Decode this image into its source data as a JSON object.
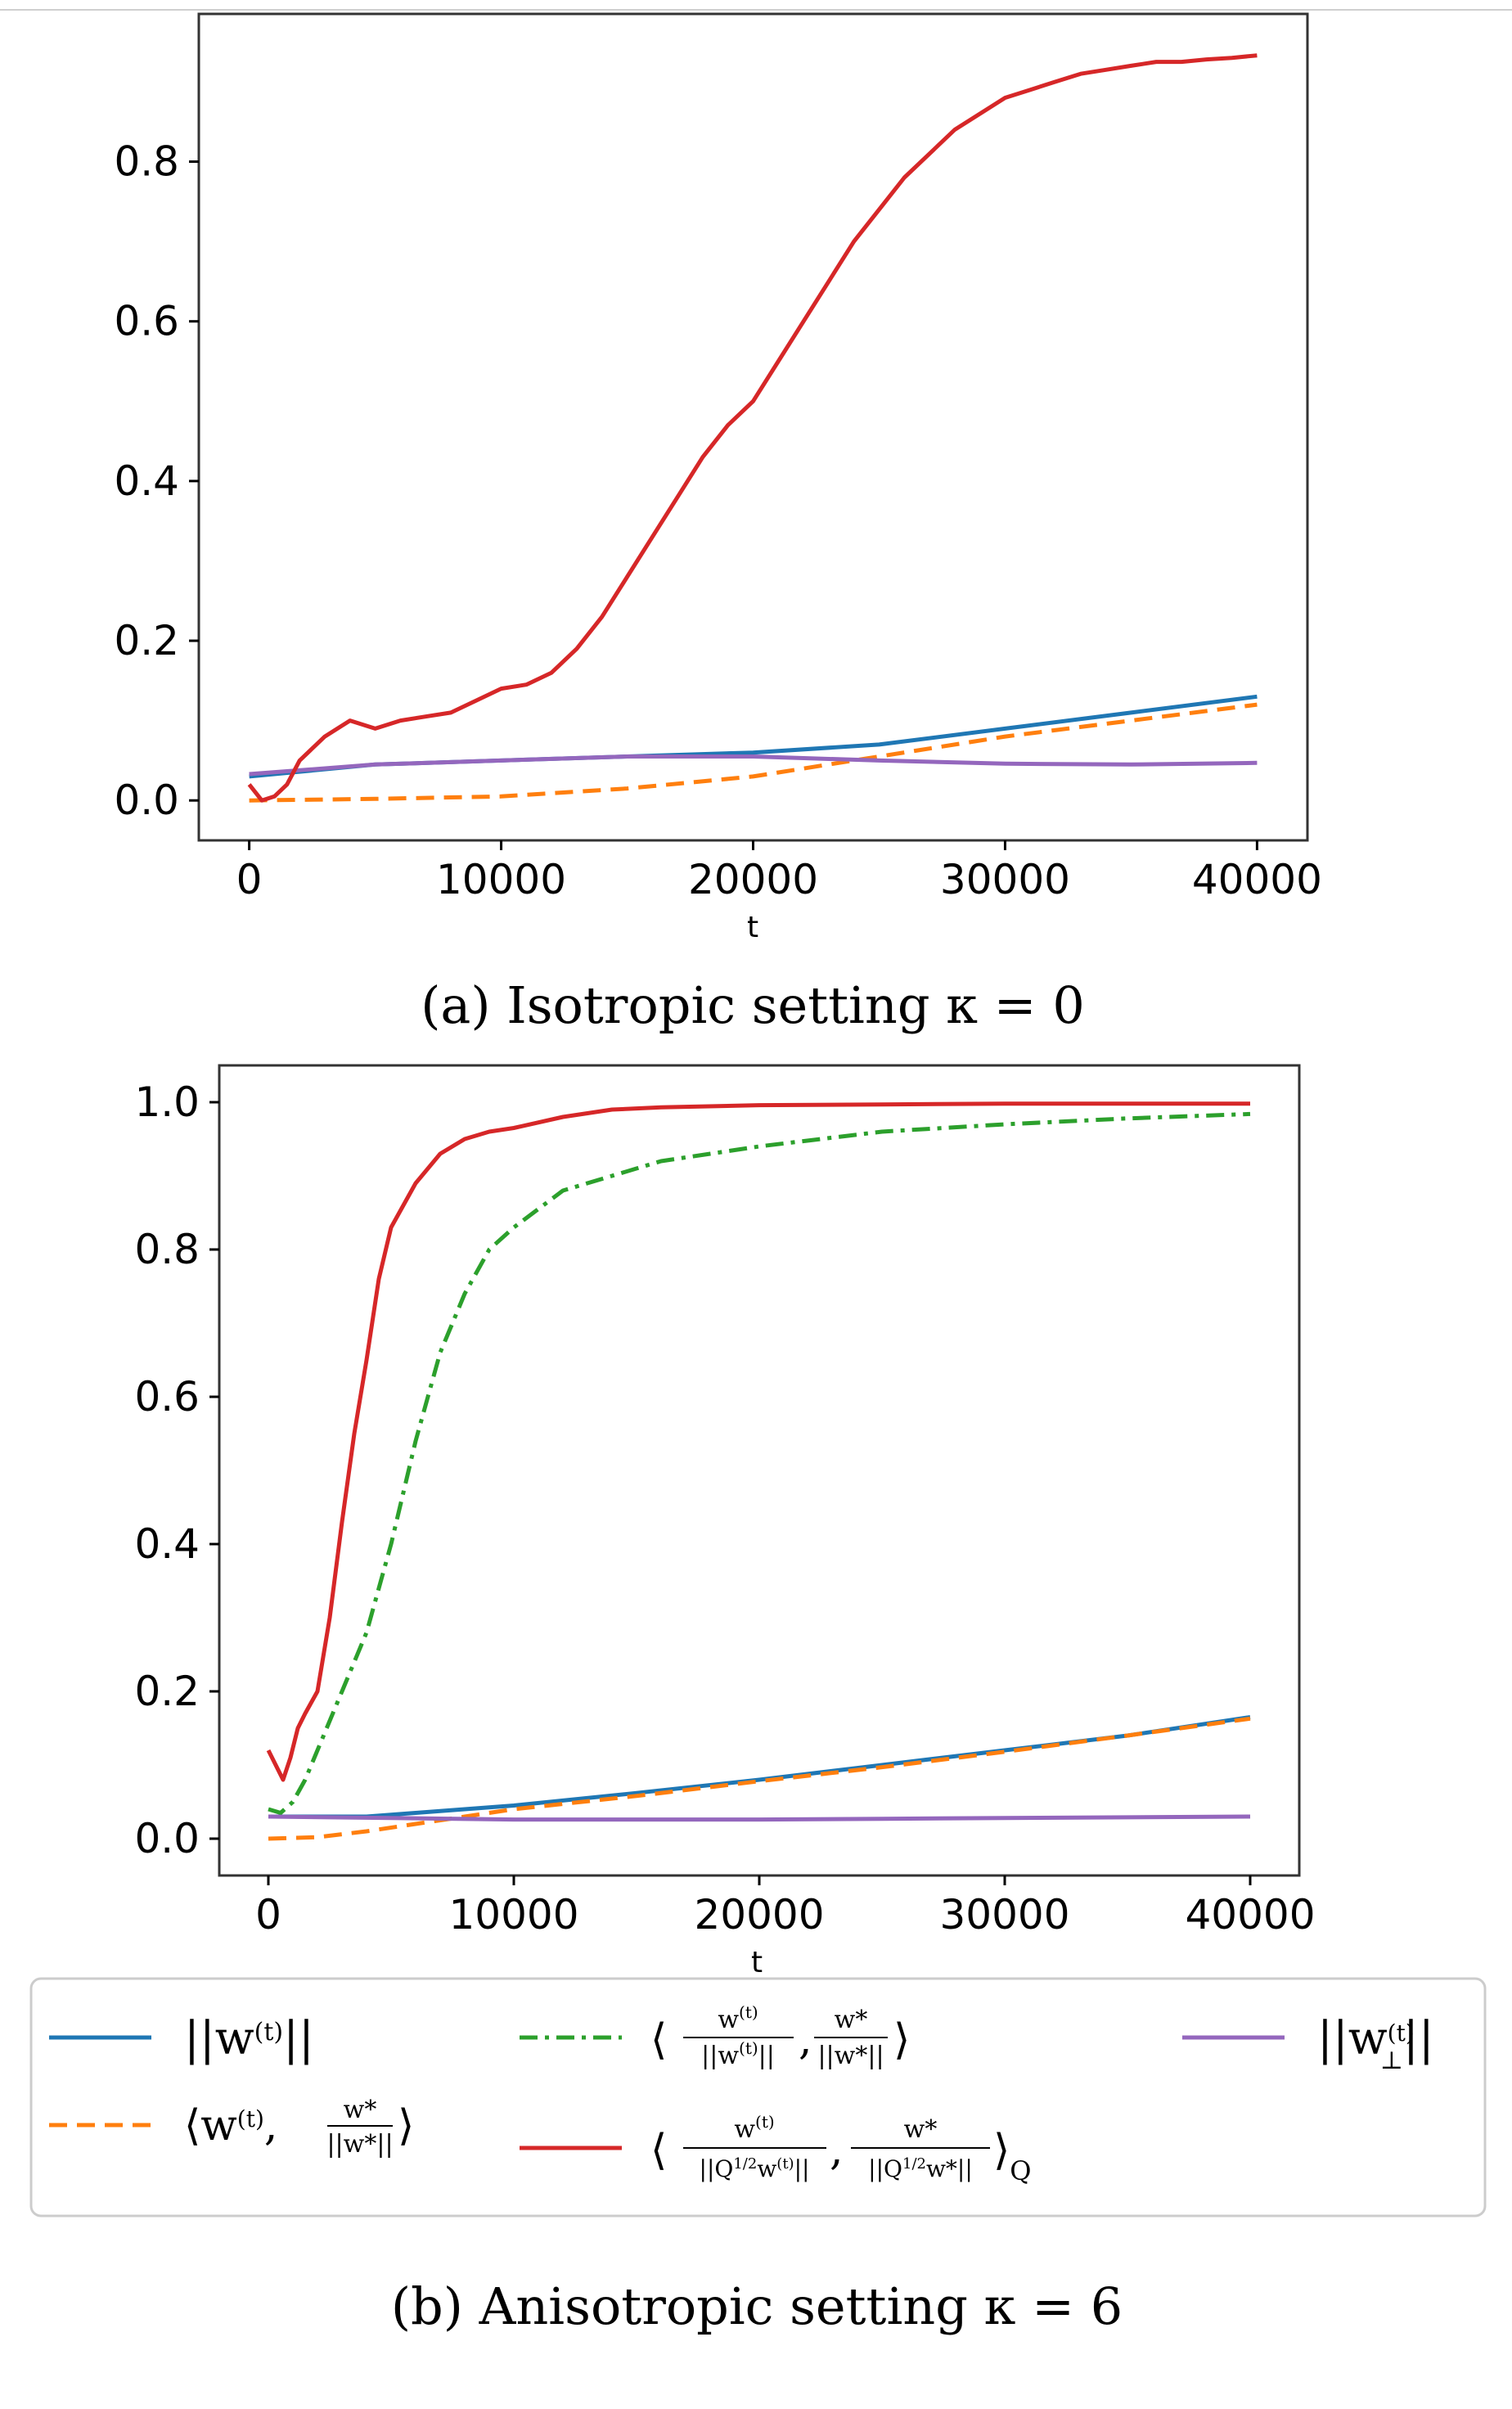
{
  "chart_data": [
    {
      "type": "line",
      "caption": "(a) Isotropic setting κ = 0",
      "xlabel": "t",
      "ylabel": "",
      "xlim": [
        -2000,
        42000
      ],
      "ylim": [
        -0.05,
        0.985
      ],
      "xticks": [
        0,
        10000,
        20000,
        30000,
        40000
      ],
      "xtick_labels": [
        "0",
        "10000",
        "20000",
        "30000",
        "40000"
      ],
      "yticks": [
        0.0,
        0.2,
        0.4,
        0.6,
        0.8
      ],
      "ytick_labels": [
        "0.0",
        "0.2",
        "0.4",
        "0.6",
        "0.8"
      ],
      "grid": false,
      "series": [
        {
          "key": "norm",
          "color": "#1f77b4",
          "style": "solid",
          "x": [
            0,
            5000,
            10000,
            15000,
            20000,
            25000,
            30000,
            35000,
            40000
          ],
          "y": [
            0.03,
            0.045,
            0.05,
            0.055,
            0.06,
            0.07,
            0.09,
            0.11,
            0.13
          ]
        },
        {
          "key": "proj",
          "color": "#ff7f0e",
          "style": "dashed",
          "x": [
            0,
            5000,
            10000,
            15000,
            20000,
            25000,
            30000,
            35000,
            40000
          ],
          "y": [
            0.0,
            0.002,
            0.005,
            0.015,
            0.03,
            0.055,
            0.08,
            0.1,
            0.12
          ]
        },
        {
          "key": "perp",
          "color": "#9467bd",
          "style": "solid",
          "x": [
            0,
            5000,
            10000,
            15000,
            20000,
            25000,
            30000,
            35000,
            40000
          ],
          "y": [
            0.033,
            0.045,
            0.05,
            0.055,
            0.055,
            0.05,
            0.046,
            0.045,
            0.047
          ]
        },
        {
          "key": "cosQ",
          "color": "#d62728",
          "style": "solid",
          "x": [
            0,
            500,
            1000,
            1500,
            2000,
            3000,
            4000,
            5000,
            6000,
            7000,
            8000,
            9000,
            10000,
            11000,
            12000,
            13000,
            14000,
            15000,
            16000,
            17000,
            18000,
            19000,
            20000,
            21000,
            22000,
            23000,
            24000,
            25000,
            26000,
            27000,
            28000,
            29000,
            30000,
            31000,
            32000,
            33000,
            34000,
            35000,
            36000,
            37000,
            38000,
            39000,
            40000
          ],
          "y": [
            0.02,
            0.0,
            0.005,
            0.02,
            0.05,
            0.08,
            0.1,
            0.09,
            0.1,
            0.105,
            0.11,
            0.125,
            0.14,
            0.145,
            0.16,
            0.19,
            0.23,
            0.28,
            0.33,
            0.38,
            0.43,
            0.47,
            0.5,
            0.55,
            0.6,
            0.65,
            0.7,
            0.74,
            0.78,
            0.81,
            0.84,
            0.86,
            0.88,
            0.89,
            0.9,
            0.91,
            0.915,
            0.92,
            0.925,
            0.925,
            0.928,
            0.93,
            0.933
          ]
        }
      ]
    },
    {
      "type": "line",
      "caption": "(b) Anisotropic setting κ = 6",
      "xlabel": "t",
      "ylabel": "",
      "xlim": [
        -2000,
        42000
      ],
      "ylim": [
        -0.05,
        1.05
      ],
      "xticks": [
        0,
        10000,
        20000,
        30000,
        40000
      ],
      "xtick_labels": [
        "0",
        "10000",
        "20000",
        "30000",
        "40000"
      ],
      "yticks": [
        0.0,
        0.2,
        0.4,
        0.6,
        0.8,
        1.0
      ],
      "ytick_labels": [
        "0.0",
        "0.2",
        "0.4",
        "0.6",
        "0.8",
        "1.0"
      ],
      "grid": false,
      "series": [
        {
          "key": "norm",
          "color": "#1f77b4",
          "style": "solid",
          "x": [
            0,
            2000,
            4000,
            6000,
            8000,
            10000,
            15000,
            20000,
            25000,
            30000,
            35000,
            40000
          ],
          "y": [
            0.03,
            0.03,
            0.03,
            0.035,
            0.04,
            0.045,
            0.062,
            0.08,
            0.1,
            0.12,
            0.14,
            0.165
          ]
        },
        {
          "key": "proj",
          "color": "#ff7f0e",
          "style": "dashed",
          "x": [
            0,
            2000,
            4000,
            6000,
            8000,
            10000,
            15000,
            20000,
            25000,
            30000,
            35000,
            40000
          ],
          "y": [
            0.0,
            0.002,
            0.01,
            0.02,
            0.03,
            0.04,
            0.058,
            0.078,
            0.097,
            0.118,
            0.14,
            0.163
          ]
        },
        {
          "key": "cos",
          "color": "#2ca02c",
          "style": "dashdot",
          "x": [
            0,
            500,
            1000,
            1500,
            2000,
            3000,
            4000,
            5000,
            6000,
            7000,
            8000,
            9000,
            10000,
            12000,
            14000,
            16000,
            18000,
            20000,
            25000,
            30000,
            35000,
            40000
          ],
          "y": [
            0.04,
            0.035,
            0.05,
            0.08,
            0.12,
            0.2,
            0.28,
            0.4,
            0.54,
            0.66,
            0.74,
            0.8,
            0.83,
            0.88,
            0.9,
            0.92,
            0.93,
            0.94,
            0.96,
            0.97,
            0.978,
            0.984
          ]
        },
        {
          "key": "cosQ",
          "color": "#d62728",
          "style": "solid",
          "x": [
            0,
            300,
            600,
            900,
            1200,
            1500,
            2000,
            2500,
            3000,
            3500,
            4000,
            4500,
            5000,
            5500,
            6000,
            7000,
            8000,
            9000,
            10000,
            12000,
            14000,
            16000,
            20000,
            25000,
            30000,
            35000,
            40000
          ],
          "y": [
            0.12,
            0.1,
            0.08,
            0.11,
            0.15,
            0.17,
            0.2,
            0.3,
            0.43,
            0.55,
            0.65,
            0.76,
            0.83,
            0.86,
            0.89,
            0.93,
            0.95,
            0.96,
            0.965,
            0.98,
            0.99,
            0.993,
            0.996,
            0.997,
            0.998,
            0.998,
            0.998
          ]
        },
        {
          "key": "perp",
          "color": "#9467bd",
          "style": "solid",
          "x": [
            0,
            5000,
            10000,
            15000,
            20000,
            25000,
            30000,
            35000,
            40000
          ],
          "y": [
            0.03,
            0.028,
            0.026,
            0.026,
            0.026,
            0.027,
            0.028,
            0.029,
            0.03
          ]
        }
      ]
    }
  ],
  "legend": {
    "placement": "below",
    "entries": [
      {
        "key": "norm",
        "color": "#1f77b4",
        "style": "solid",
        "label": "||w(t)||"
      },
      {
        "key": "proj",
        "color": "#ff7f0e",
        "style": "dashed",
        "label": "⟨w(t), w*/||w*||⟩"
      },
      {
        "key": "cos",
        "color": "#2ca02c",
        "style": "dashdot",
        "label": "⟨w(t)/||w(t)||, w*/||w*||⟩"
      },
      {
        "key": "cosQ",
        "color": "#d62728",
        "style": "solid",
        "label": "⟨w(t)/||Q1/2w(t)||, w*/||Q1/2w*||⟩Q"
      },
      {
        "key": "perp",
        "color": "#9467bd",
        "style": "solid",
        "label": "||w⊥(t)||"
      }
    ]
  }
}
